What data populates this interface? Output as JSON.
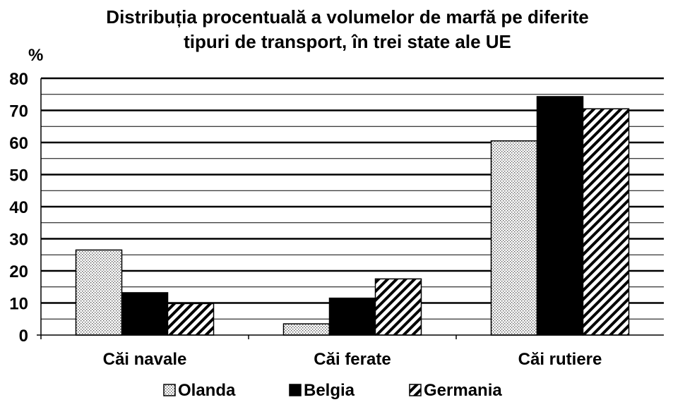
{
  "chart_data": {
    "type": "bar",
    "title_lines": [
      "Distribuția procentuală a volumelor de marfă pe diferite",
      "tipuri de transport, în trei state ale UE"
    ],
    "ylabel": "%",
    "xlabel": "",
    "ylim": [
      0,
      80
    ],
    "yticks": [
      "0",
      "10",
      "20",
      "30",
      "40",
      "50",
      "60",
      "70",
      "80"
    ],
    "grid": "horizontal",
    "legend_position": "bottom",
    "categories": [
      "Căi navale",
      "Căi ferate",
      "Căi rutiere"
    ],
    "series": [
      {
        "name": "Olanda",
        "values": [
          26.5,
          3.5,
          60.5
        ],
        "pattern": "dotted",
        "color": "#000000"
      },
      {
        "name": "Belgia",
        "values": [
          13.2,
          11.5,
          74.3
        ],
        "pattern": "solid",
        "color": "#000000"
      },
      {
        "name": "Germania",
        "values": [
          9.8,
          17.5,
          70.5
        ],
        "pattern": "diagonal-hatch",
        "color": "#000000"
      }
    ]
  }
}
